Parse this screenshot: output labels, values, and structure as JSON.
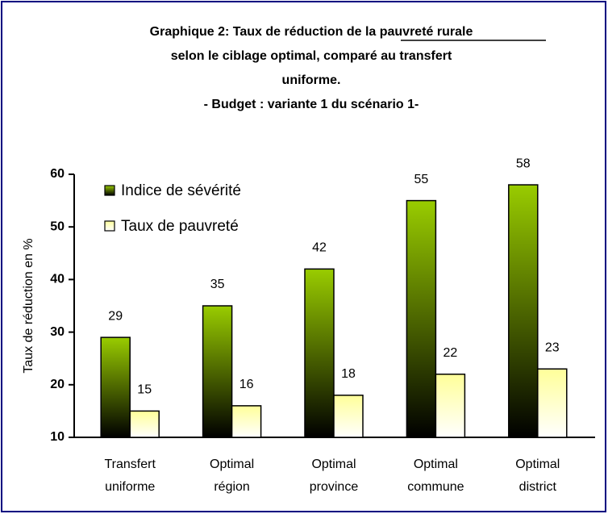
{
  "chart_data": {
    "type": "bar",
    "title": [
      "Graphique 2: Taux de réduction de la pauvreté rurale",
      "selon le ciblage optimal, comparé au transfert",
      "uniforme.",
      "- Budget : variante 1 du scénario 1-"
    ],
    "ylabel": "Taux de réduction en %",
    "categories": [
      [
        "Transfert",
        "uniforme"
      ],
      [
        "Optimal",
        "région"
      ],
      [
        "Optimal",
        "province"
      ],
      [
        "Optimal",
        "commune"
      ],
      [
        "Optimal",
        "district"
      ]
    ],
    "series": [
      {
        "name": "Indice de sévérité",
        "color": "#99cc00",
        "values": [
          29,
          35,
          42,
          55,
          58
        ]
      },
      {
        "name": "Taux de pauvreté",
        "color": "#ffff99",
        "values": [
          15,
          16,
          18,
          22,
          23
        ]
      }
    ],
    "ylim": [
      10,
      60
    ],
    "yticks": [
      10,
      20,
      30,
      40,
      50,
      60
    ],
    "legend": "upper left"
  }
}
